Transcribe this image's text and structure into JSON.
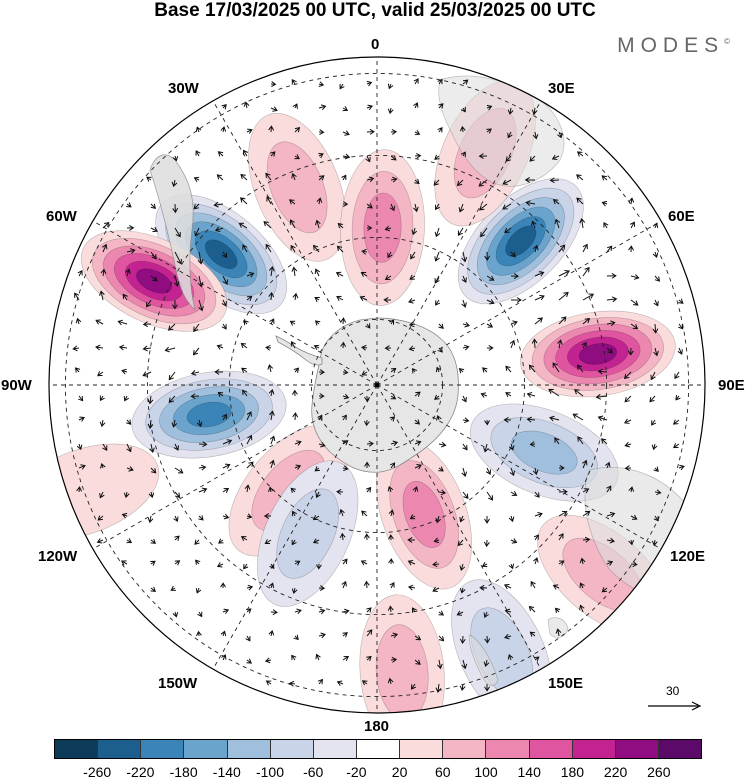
{
  "title": "Base 17/03/2025 00 UTC, valid 25/03/2025 00 UTC",
  "logo": "MODES",
  "logo_mark": "©",
  "longitude_labels": {
    "top": "0",
    "top_left": "30W",
    "top_right": "30E",
    "upper_left": "60W",
    "upper_right": "60E",
    "left": "90W",
    "right": "90E",
    "lower_left": "120W",
    "lower_right": "120E",
    "bottom_left": "150W",
    "bottom_right": "150E",
    "bottom": "180"
  },
  "reference_vector": "30",
  "colorbar": {
    "colors": [
      "#0e3b5a",
      "#1c5f8f",
      "#3a84b8",
      "#6aa4cc",
      "#9fbfdd",
      "#c9d4e8",
      "#e4e4f0",
      "#ffffff",
      "#fbdcdc",
      "#f4b5c5",
      "#ec88b0",
      "#df55a0",
      "#c22390",
      "#8f0d80",
      "#5c0a6a"
    ],
    "labels": [
      "-260",
      "-220",
      "-180",
      "-140",
      "-100",
      "-60",
      "-20",
      "20",
      "60",
      "100",
      "140",
      "180",
      "220",
      "260"
    ]
  },
  "anomalies": [
    {
      "lon": -22,
      "r": 0.65,
      "value": 100
    },
    {
      "lon": -50,
      "r": 0.62,
      "value": -240
    },
    {
      "lon": -65,
      "r": 0.75,
      "value": 240
    },
    {
      "lon": 45,
      "r": 0.62,
      "value": -240
    },
    {
      "lon": 82,
      "r": 0.68,
      "value": 240
    },
    {
      "lon": 2,
      "r": 0.48,
      "value": 120
    },
    {
      "lon": 25,
      "r": 0.78,
      "value": 80
    },
    {
      "lon": -100,
      "r": 0.52,
      "value": -200
    },
    {
      "lon": 112,
      "r": 0.55,
      "value": -140
    },
    {
      "lon": 130,
      "r": 0.9,
      "value": 80
    },
    {
      "lon": 160,
      "r": 0.42,
      "value": 120
    },
    {
      "lon": -140,
      "r": 0.42,
      "value": 100
    },
    {
      "lon": -155,
      "r": 0.5,
      "value": -80
    },
    {
      "lon": 175,
      "r": 0.88,
      "value": 100
    },
    {
      "lon": 155,
      "r": 0.9,
      "value": -80
    },
    {
      "lon": -110,
      "r": 0.95,
      "value": 60
    }
  ]
}
